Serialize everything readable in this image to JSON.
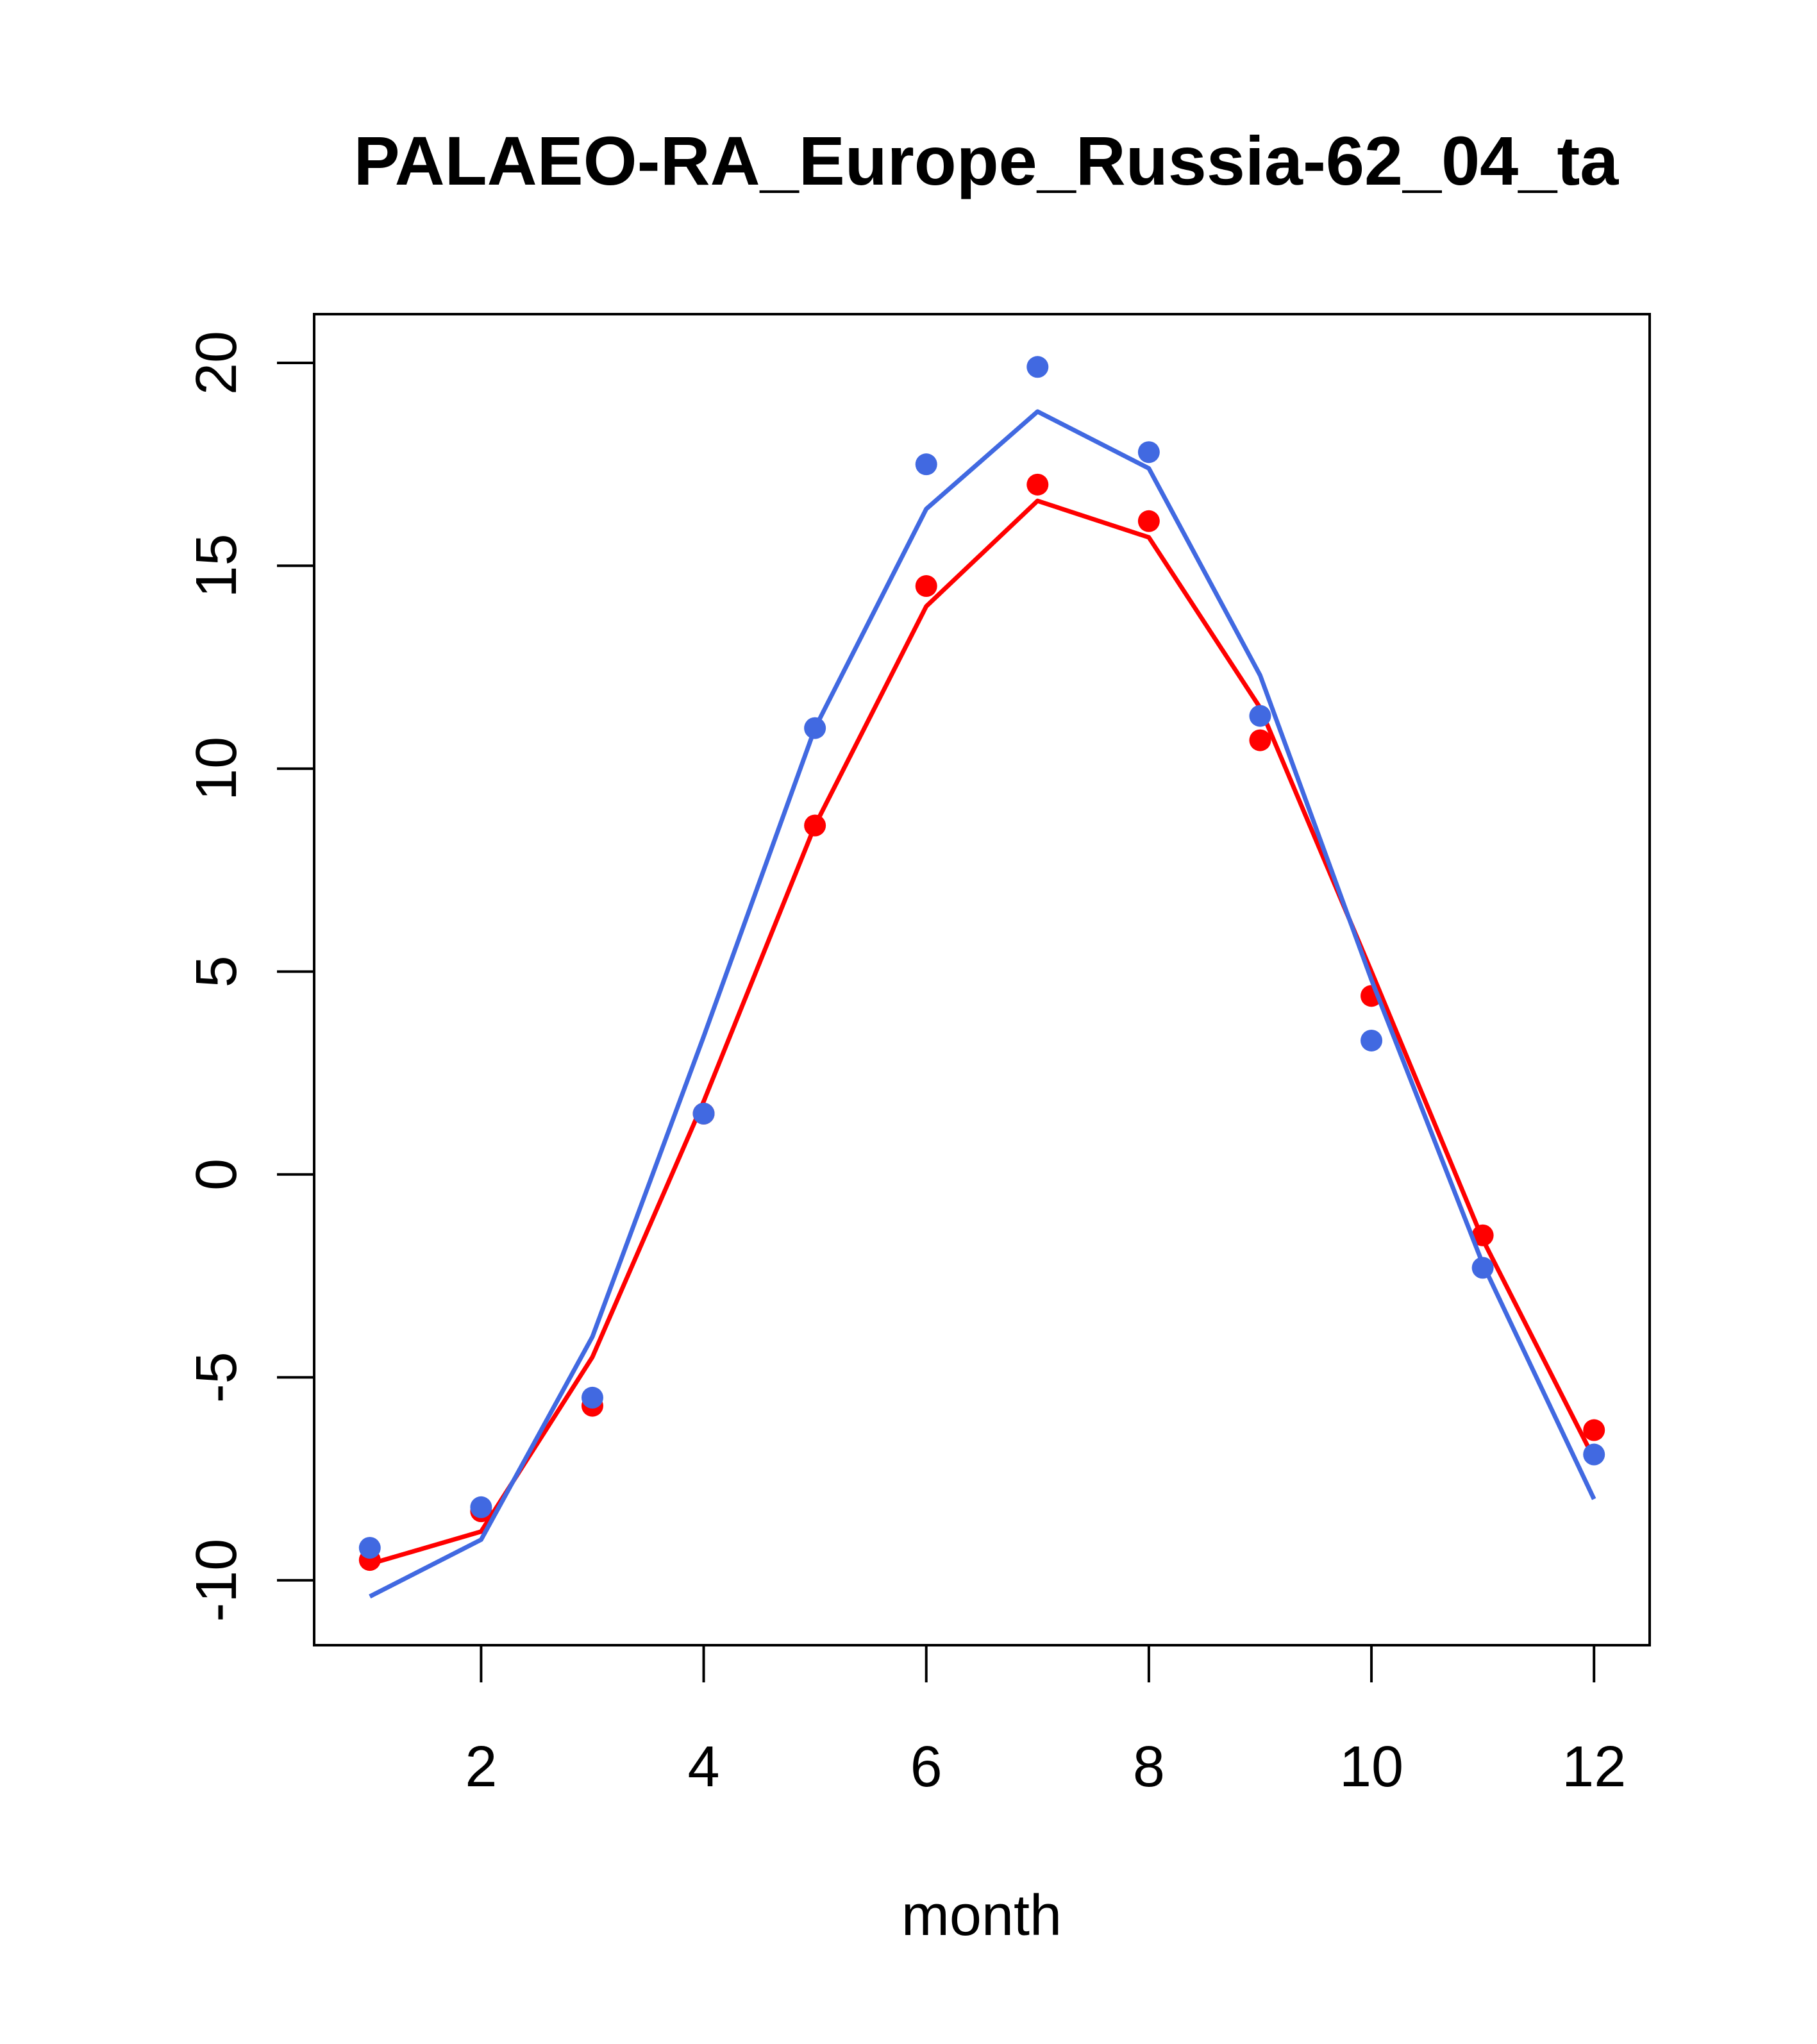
{
  "chart_data": {
    "type": "line",
    "title": "PALAEO-RA_Europe_Russia-62_04_ta",
    "xlabel": "month",
    "ylabel": "",
    "xlim": [
      0.5,
      12.5
    ],
    "ylim": [
      -11.6,
      21.2
    ],
    "x_ticks": [
      2,
      4,
      6,
      8,
      10,
      12
    ],
    "y_ticks": [
      -10,
      -5,
      0,
      5,
      10,
      15,
      20
    ],
    "x_tick_labels": [
      "2",
      "4",
      "6",
      "8",
      "10",
      "12"
    ],
    "y_tick_labels": [
      "-10",
      "-5",
      "0",
      "5",
      "10",
      "15",
      "20"
    ],
    "grid": false,
    "x": [
      1,
      2,
      3,
      4,
      5,
      6,
      7,
      8,
      9,
      10,
      11,
      12
    ],
    "series": [
      {
        "color": "#ff0000",
        "line": [
          -9.6,
          -8.8,
          -4.5,
          1.8,
          8.6,
          14.0,
          16.6,
          15.7,
          11.5,
          5.0,
          -1.6,
          -7.0
        ],
        "points": [
          -9.5,
          -8.3,
          -5.7,
          1.5,
          8.6,
          14.5,
          17.0,
          16.1,
          10.7,
          4.4,
          -1.5,
          -6.3
        ]
      },
      {
        "color": "#4169e1",
        "line": [
          -10.4,
          -9.0,
          -4.0,
          3.4,
          11.0,
          16.4,
          18.8,
          17.4,
          12.3,
          4.8,
          -2.2,
          -8.0
        ],
        "points": [
          -9.2,
          -8.2,
          -5.5,
          1.5,
          11.0,
          17.5,
          19.9,
          17.8,
          11.3,
          3.3,
          -2.3,
          -6.9
        ]
      }
    ]
  }
}
